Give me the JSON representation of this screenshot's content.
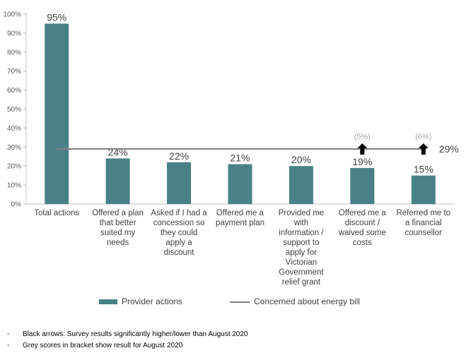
{
  "chart_data": {
    "type": "bar",
    "categories": [
      [
        "Total actions"
      ],
      [
        "Offered a plan",
        "that better",
        "suited my",
        "needs"
      ],
      [
        "Asked if I had a",
        "concession so",
        "they could",
        "apply a",
        "discount"
      ],
      [
        "Offered me a",
        "payment plan"
      ],
      [
        "Provided me",
        "with",
        "information /",
        "support to",
        "apply for",
        "Victorian",
        "Government",
        "relief grant"
      ],
      [
        "Offered me a",
        "discount /",
        "waived some",
        "costs"
      ],
      [
        "Referred me to",
        "a financial",
        "counsellor"
      ]
    ],
    "series": [
      {
        "name": "Provider actions",
        "values": [
          95,
          24,
          22,
          21,
          20,
          19,
          15
        ],
        "color": "#4a8088"
      }
    ],
    "data_labels": [
      "95%",
      "24%",
      "22%",
      "21%",
      "20%",
      "19%",
      "15%"
    ],
    "reference_line": {
      "name": "Concerned about energy bill",
      "value": 29,
      "label": "29%",
      "color": "#808080"
    },
    "previous_scores": [
      {
        "category_index": 5,
        "label": "(5%)",
        "arrow": "up"
      },
      {
        "category_index": 6,
        "label": "(6%)",
        "arrow": "up"
      }
    ],
    "ylim": [
      0,
      100
    ],
    "yticks": [
      0,
      10,
      20,
      30,
      40,
      50,
      60,
      70,
      80,
      90,
      100
    ],
    "ytick_format": "{v}%",
    "legend_position": "bottom",
    "grid": false
  },
  "legend": {
    "bar_label": "Provider actions",
    "line_label": "Concerned about energy bill"
  },
  "notes": [
    "Black arrows: Survey results significantly higher/lower than August 2020",
    "Grey scores in bracket show result for August 2020"
  ],
  "note_bullet": "-"
}
